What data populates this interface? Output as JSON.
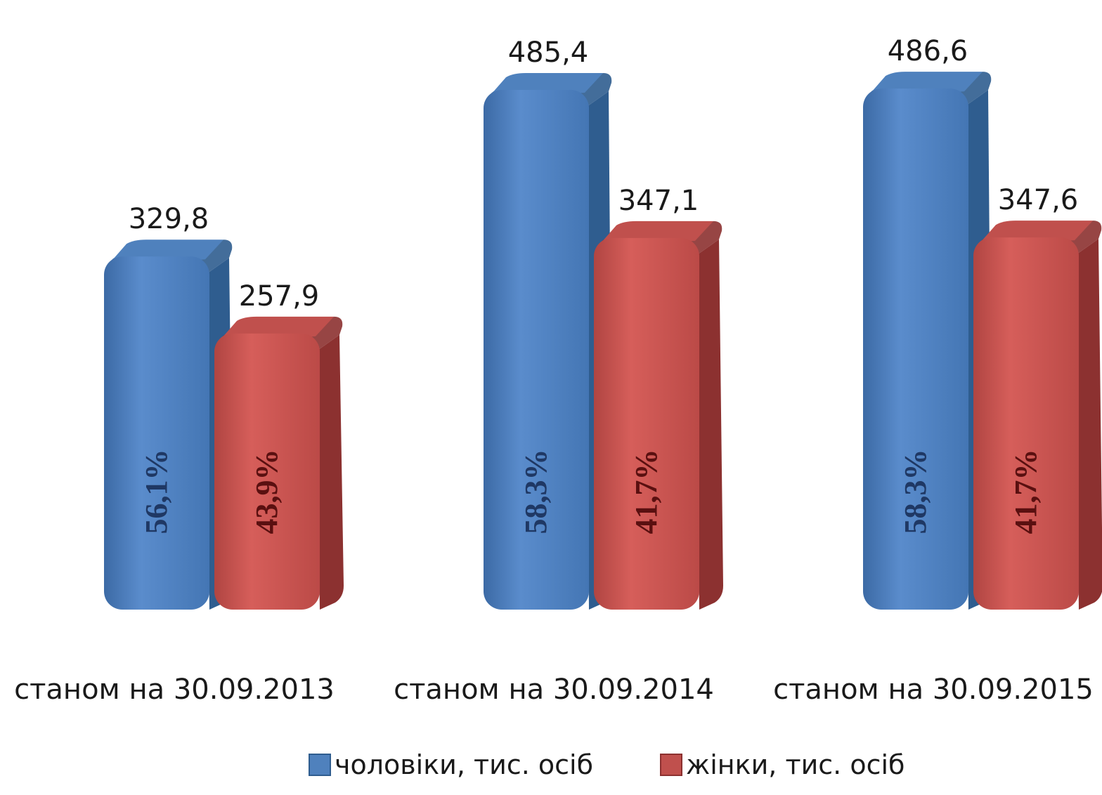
{
  "chart_data": {
    "type": "bar",
    "categories": [
      "станом на 30.09.2013",
      "станом на 30.09.2014",
      "станом на 30.09.2015"
    ],
    "series": [
      {
        "name": "чоловіки, тис. осіб",
        "values": [
          329.8,
          485.4,
          486.6
        ],
        "value_labels": [
          "329,8",
          "485,4",
          "486,6"
        ],
        "share_labels": [
          "56,1%",
          "58,3%",
          "58,3%"
        ],
        "color": "#4f81bd",
        "side_color": "#2f5d8f",
        "text_color": "#1f3864"
      },
      {
        "name": "жінки, тис. осіб",
        "values": [
          257.9,
          347.1,
          347.6
        ],
        "value_labels": [
          "257,9",
          "347,1",
          "347,6"
        ],
        "share_labels": [
          "43,9%",
          "41,7%",
          "41,7%"
        ],
        "color": "#c0504d",
        "side_color": "#8c3130",
        "text_color": "#5a1010"
      }
    ],
    "ylim": [
      0,
      530
    ],
    "grid": false,
    "axes_visible": false,
    "legend_position": "bottom",
    "style": "3d-rounded"
  }
}
